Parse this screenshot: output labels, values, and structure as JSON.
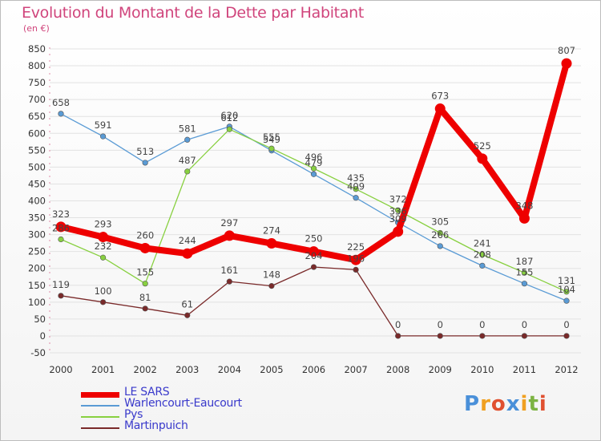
{
  "header": {
    "title": "Evolution du Montant de la Dette par Habitant",
    "subtitle": "(en €)"
  },
  "logo": {
    "text": "Proxiti",
    "colors": [
      "#4a90d9",
      "#f0a020",
      "#e05030",
      "#4a90d9",
      "#f0a020",
      "#7cb342",
      "#e05030"
    ]
  },
  "chart_data": {
    "type": "line",
    "title": "Evolution du Montant de la Dette par Habitant",
    "subtitle": "(en €)",
    "xlabel": "",
    "ylabel": "",
    "x": [
      "2000",
      "2001",
      "2002",
      "2003",
      "2004",
      "2005",
      "2006",
      "2007",
      "2008",
      "2009",
      "2010",
      "2011",
      "2012"
    ],
    "ylim": [
      -50,
      850
    ],
    "yticks": [
      "-50",
      "0",
      "50",
      "100",
      "150",
      "200",
      "250",
      "300",
      "350",
      "400",
      "450",
      "500",
      "550",
      "600",
      "650",
      "700",
      "750",
      "800",
      "850"
    ],
    "grid": "horizontal",
    "legend_position": "bottom-left",
    "series": [
      {
        "name": "LE SARS",
        "color": "#ee0000",
        "values": [
          323,
          293,
          260,
          244,
          297,
          274,
          250,
          225,
          309,
          673,
          525,
          348,
          807
        ]
      },
      {
        "name": "Warlencourt-Eaucourt",
        "color": "#5a9bd5",
        "values": [
          658,
          591,
          513,
          581,
          620,
          549,
          479,
          409,
          336,
          266,
          208,
          155,
          104
        ]
      },
      {
        "name": "Pys",
        "color": "#88d040",
        "values": [
          286,
          232,
          155,
          487,
          612,
          555,
          496,
          435,
          372,
          305,
          241,
          187,
          131
        ]
      },
      {
        "name": "Martinpuich",
        "color": "#7a2a2a",
        "values": [
          119,
          100,
          81,
          61,
          161,
          148,
          204,
          196,
          0,
          0,
          0,
          0,
          0
        ]
      }
    ]
  }
}
